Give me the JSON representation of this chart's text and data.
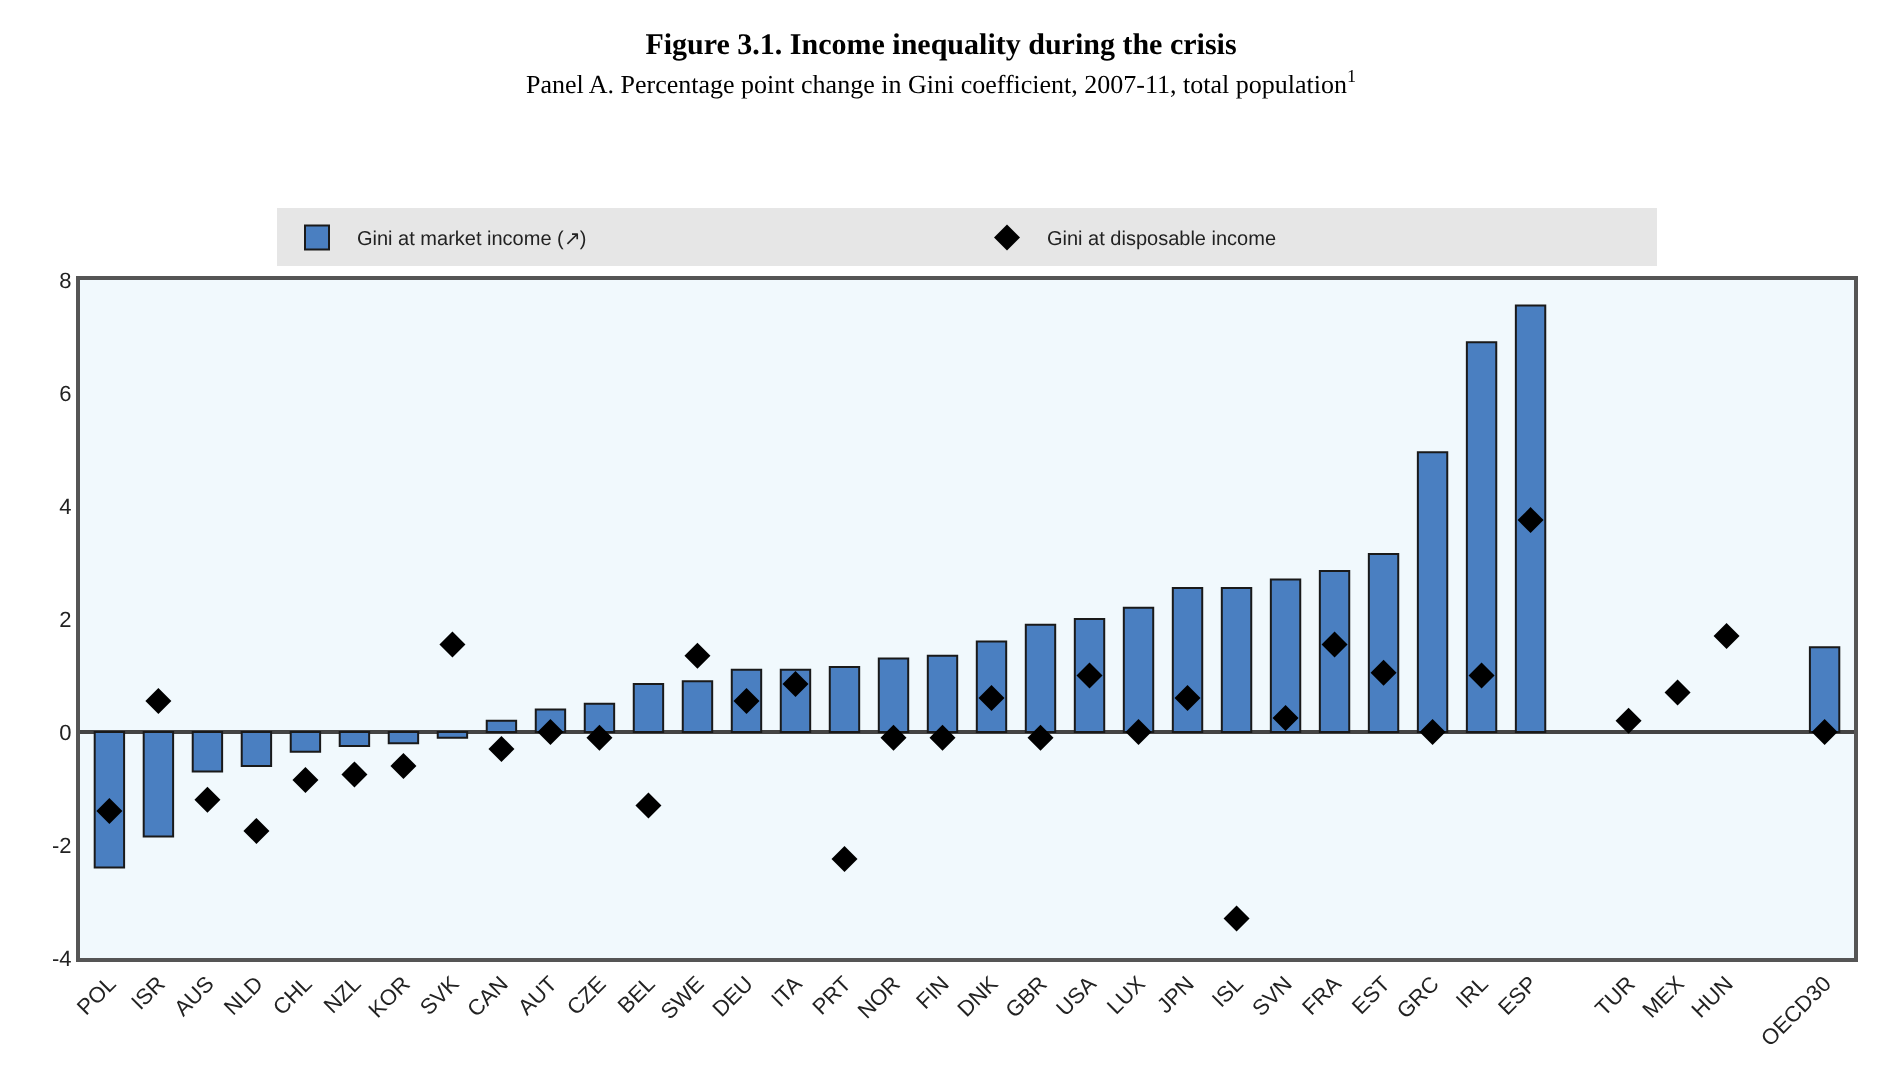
{
  "chart_data": {
    "type": "bar",
    "title": "Figure 3.1. Income inequality during the crisis",
    "subtitle": "Panel A. Percentage point change in Gini coefficient, 2007-11, total population$^{1}$",
    "categories": [
      "POL",
      "ISR",
      "AUS",
      "NLD",
      "CHL",
      "NZL",
      "KOR",
      "SVK",
      "CAN",
      "AUT",
      "CZE",
      "BEL",
      "SWE",
      "DEU",
      "ITA",
      "PRT",
      "NOR",
      "FIN",
      "DNK",
      "GBR",
      "USA",
      "LUX",
      "JPN",
      "ISL",
      "SVN",
      "FRA",
      "EST",
      "GRC",
      "IRL",
      "ESP",
      null,
      "TUR",
      "MEX",
      "HUN",
      null,
      "OECD30"
    ],
    "series": [
      {
        "name": "Gini at market income (↗)",
        "color": "#4a7fc1",
        "values": [
          -2.4,
          -1.85,
          -0.7,
          -0.6,
          -0.35,
          -0.25,
          -0.2,
          -0.1,
          0.2,
          0.4,
          0.5,
          0.85,
          0.9,
          1.1,
          1.1,
          1.15,
          1.3,
          1.35,
          1.6,
          1.9,
          2.0,
          2.2,
          2.55,
          2.55,
          2.7,
          2.85,
          3.15,
          4.95,
          6.9,
          7.55,
          null,
          null,
          null,
          null,
          null,
          1.5
        ]
      },
      {
        "name": "Gini at disposable income",
        "type": "scatter",
        "color": "#000000",
        "marker": "diamond",
        "values": [
          -1.4,
          0.55,
          -1.2,
          -1.75,
          -0.85,
          -0.75,
          -0.6,
          1.55,
          -0.3,
          0.0,
          -0.1,
          -1.3,
          1.35,
          0.55,
          0.85,
          -2.25,
          -0.1,
          -0.1,
          0.6,
          -0.1,
          1.0,
          0.0,
          0.6,
          -3.3,
          0.25,
          1.55,
          1.05,
          0.0,
          1.0,
          3.75,
          null,
          0.2,
          0.7,
          1.7,
          null,
          0.0
        ]
      }
    ],
    "ylim": [
      -4,
      8
    ],
    "yticks": [
      -4,
      -2,
      0,
      2,
      4,
      6,
      8
    ],
    "legend": "top"
  }
}
